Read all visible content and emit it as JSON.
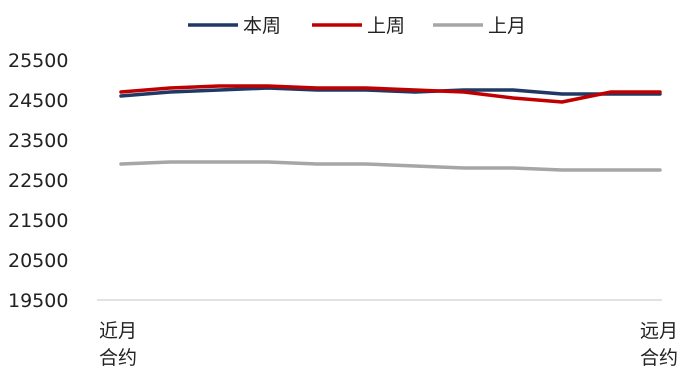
{
  "chart_data": {
    "type": "line",
    "title": "",
    "xlabel": "",
    "ylabel": "",
    "ylim": [
      19500,
      25500
    ],
    "yticks": [
      19500,
      20500,
      21500,
      22500,
      23500,
      24500,
      25500
    ],
    "x_tick_labels": {
      "first": [
        "近月",
        "合约"
      ],
      "last": [
        "远月",
        "合约"
      ]
    },
    "legend": "top-center",
    "grid": false,
    "series": [
      {
        "name": "本周",
        "color": "#1f3864",
        "values": [
          24600,
          24700,
          24750,
          24800,
          24750,
          24750,
          24700,
          24750,
          24750,
          24650,
          24650,
          24650
        ]
      },
      {
        "name": "上周",
        "color": "#c00000",
        "values": [
          24700,
          24800,
          24850,
          24850,
          24800,
          24800,
          24750,
          24700,
          24550,
          24450,
          24700,
          24700
        ]
      },
      {
        "name": "上月",
        "color": "#a6a6a6",
        "values": [
          22900,
          22950,
          22950,
          22950,
          22900,
          22900,
          22850,
          22800,
          22800,
          22750,
          22750,
          22750
        ]
      }
    ]
  }
}
